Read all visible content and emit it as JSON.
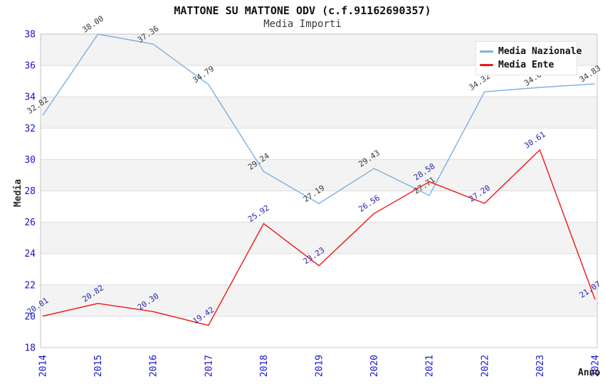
{
  "chart_data": {
    "type": "line",
    "title": "MATTONE SU MATTONE ODV (c.f.91162690357)",
    "subtitle": "Media Importi",
    "xlabel": "Anno",
    "ylabel": "Media",
    "categories": [
      "2014",
      "2015",
      "2016",
      "2017",
      "2018",
      "2019",
      "2020",
      "2021",
      "2022",
      "2023",
      "2024"
    ],
    "series": [
      {
        "name": "Media Nazionale",
        "color": "#7cb0e2",
        "label_color": "#3a3a3a",
        "values": [
          32.82,
          38.0,
          37.36,
          34.79,
          29.24,
          27.19,
          29.43,
          27.71,
          34.32,
          34.6,
          34.83
        ]
      },
      {
        "name": "Media Ente",
        "color": "#ee1515",
        "label_color": "#2828aa",
        "values": [
          20.01,
          20.82,
          20.3,
          19.42,
          25.92,
          23.23,
          26.56,
          28.58,
          27.2,
          30.61,
          21.07
        ]
      }
    ],
    "ylim": [
      18,
      38
    ],
    "yticks": [
      38,
      36,
      34,
      32,
      30,
      28,
      26,
      24,
      22,
      20,
      18
    ],
    "grid": true,
    "legend_position": "top-right",
    "colors": {
      "tick_label": "#1414cc",
      "stripe": "#f3f3f3",
      "gridline": "#dddddd",
      "plot_border": "#c4c4c4",
      "background": "#ffffff"
    }
  }
}
